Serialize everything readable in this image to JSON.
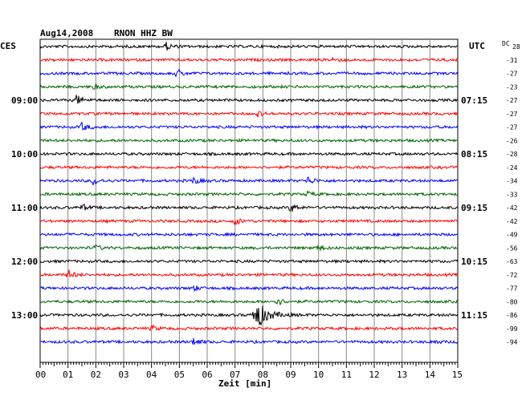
{
  "header": {
    "date": "Aug14,2008",
    "station": "RNON HHZ BW",
    "left_tz": "CES",
    "right_tz": "UTC",
    "dc_label": "DC"
  },
  "chart_data": {
    "type": "line",
    "title": "Aug14,2008   RNON HHZ BW",
    "xlabel": "Zeit [min]",
    "xlim": [
      0,
      15
    ],
    "x_ticks": [
      "00",
      "01",
      "02",
      "03",
      "04",
      "05",
      "06",
      "07",
      "08",
      "09",
      "10",
      "11",
      "12",
      "13",
      "14",
      "15"
    ],
    "trace_colors": [
      "#000000",
      "#ff0000",
      "#0000ff",
      "#006400"
    ],
    "left_time_labels": [
      {
        "row": 4,
        "label": "09:00"
      },
      {
        "row": 8,
        "label": "10:00"
      },
      {
        "row": 12,
        "label": "11:00"
      },
      {
        "row": 16,
        "label": "12:00"
      },
      {
        "row": 20,
        "label": "13:00"
      }
    ],
    "right_time_labels": [
      {
        "row": 4,
        "label": "07:15"
      },
      {
        "row": 8,
        "label": "08:15"
      },
      {
        "row": 12,
        "label": "09:15"
      },
      {
        "row": 16,
        "label": "10:15"
      },
      {
        "row": 20,
        "label": "11:15"
      }
    ],
    "dc_values": [
      "28",
      "-31",
      "-27",
      "-23",
      "-27",
      "-27",
      "-27",
      "-26",
      "-28",
      "-24",
      "-34",
      "-33",
      "-42",
      "-42",
      "-49",
      "-56",
      "-63",
      "-72",
      "-77",
      "-80",
      "-86",
      "-99",
      "-94"
    ],
    "events": [
      {
        "row": 0,
        "minute": 4.5,
        "amp": 5
      },
      {
        "row": 1,
        "minute": 10.5,
        "amp": 3
      },
      {
        "row": 2,
        "minute": 4.9,
        "amp": 5
      },
      {
        "row": 3,
        "minute": 1.9,
        "amp": 3
      },
      {
        "row": 4,
        "minute": 1.3,
        "amp": 6
      },
      {
        "row": 5,
        "minute": 7.8,
        "amp": 3
      },
      {
        "row": 6,
        "minute": 1.5,
        "amp": 5
      },
      {
        "row": 10,
        "minute": 1.9,
        "amp": 5
      },
      {
        "row": 10,
        "minute": 5.5,
        "amp": 4
      },
      {
        "row": 10,
        "minute": 9.6,
        "amp": 5
      },
      {
        "row": 11,
        "minute": 9.6,
        "amp": 3
      },
      {
        "row": 12,
        "minute": 1.5,
        "amp": 4
      },
      {
        "row": 12,
        "minute": 9.0,
        "amp": 6
      },
      {
        "row": 13,
        "minute": 7.0,
        "amp": 5
      },
      {
        "row": 15,
        "minute": 2.0,
        "amp": 3
      },
      {
        "row": 15,
        "minute": 10.0,
        "amp": 3
      },
      {
        "row": 17,
        "minute": 1.0,
        "amp": 6
      },
      {
        "row": 18,
        "minute": 5.5,
        "amp": 3
      },
      {
        "row": 19,
        "minute": 8.5,
        "amp": 5
      },
      {
        "row": 20,
        "minute": 7.7,
        "amp": 22
      },
      {
        "row": 21,
        "minute": 4.0,
        "amp": 3
      },
      {
        "row": 22,
        "minute": 5.5,
        "amp": 5
      },
      {
        "row": 22,
        "minute": 14.1,
        "amp": 3
      }
    ]
  }
}
